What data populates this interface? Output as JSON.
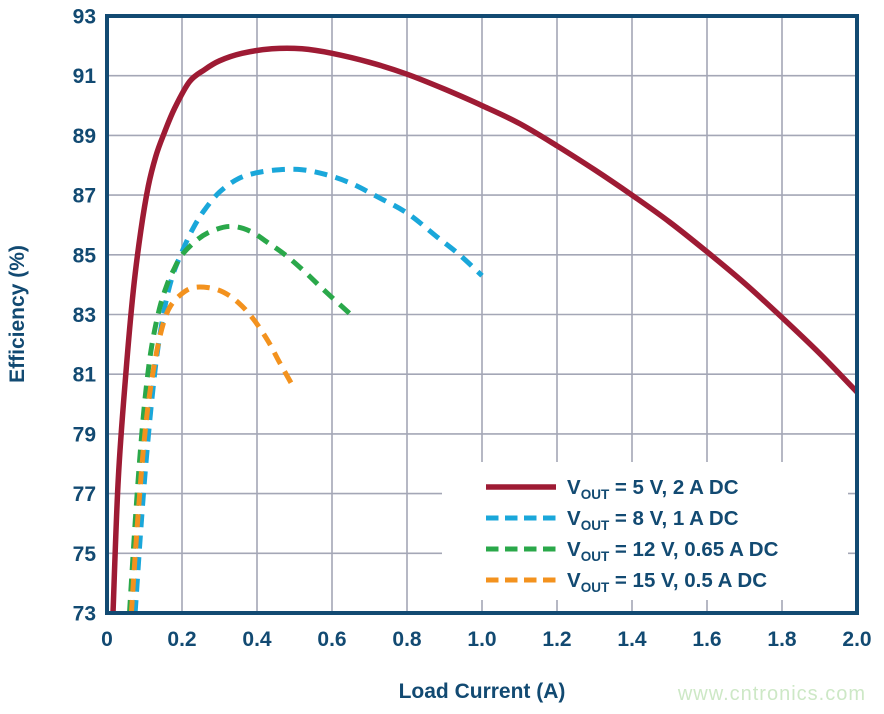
{
  "watermark": "www.cntronics.com",
  "colors": {
    "axis": "#124a72",
    "grid": "#a4a7b6",
    "background": "#ffffff",
    "watermark": "#cde8c6",
    "legend_box": "#ffffff"
  },
  "chart_data": {
    "type": "line",
    "title": "",
    "xlabel": "Load Current (A)",
    "ylabel": "Efficiency (%)",
    "xlim": [
      0,
      2.0
    ],
    "ylim": [
      73,
      93
    ],
    "xtick_values": [
      0,
      0.2,
      0.4,
      0.6,
      0.8,
      1.0,
      1.2,
      1.4,
      1.6,
      1.8,
      2.0
    ],
    "xtick_labels": [
      "0",
      "0.2",
      "0.4",
      "0.6",
      "0.8",
      "1.0",
      "1.2",
      "1.4",
      "1.6",
      "1.8",
      "2.0"
    ],
    "ytick_values": [
      73,
      75,
      77,
      79,
      81,
      83,
      85,
      87,
      89,
      91,
      93
    ],
    "ytick_labels": [
      "73",
      "75",
      "77",
      "79",
      "81",
      "83",
      "85",
      "87",
      "89",
      "91",
      "93"
    ],
    "grid": true,
    "legend_position": "lower right",
    "series": [
      {
        "label": {
          "prefix": "V",
          "sub": "OUT",
          "rest": " = 5 V, 2 A DC"
        },
        "color": "#9e1b34",
        "dash": "solid",
        "points": [
          [
            0.016,
            73
          ],
          [
            0.03,
            77.5
          ],
          [
            0.05,
            81
          ],
          [
            0.07,
            83.8
          ],
          [
            0.09,
            85.8
          ],
          [
            0.11,
            87.3
          ],
          [
            0.13,
            88.3
          ],
          [
            0.15,
            89.0
          ],
          [
            0.18,
            89.9
          ],
          [
            0.22,
            90.8
          ],
          [
            0.26,
            91.2
          ],
          [
            0.3,
            91.5
          ],
          [
            0.36,
            91.75
          ],
          [
            0.44,
            91.9
          ],
          [
            0.52,
            91.9
          ],
          [
            0.6,
            91.75
          ],
          [
            0.7,
            91.45
          ],
          [
            0.8,
            91.05
          ],
          [
            0.9,
            90.55
          ],
          [
            1.0,
            90.0
          ],
          [
            1.1,
            89.4
          ],
          [
            1.2,
            88.65
          ],
          [
            1.3,
            87.85
          ],
          [
            1.4,
            87.0
          ],
          [
            1.5,
            86.1
          ],
          [
            1.6,
            85.1
          ],
          [
            1.7,
            84.05
          ],
          [
            1.8,
            82.9
          ],
          [
            1.9,
            81.7
          ],
          [
            2.0,
            80.4
          ]
        ]
      },
      {
        "label": {
          "prefix": "V",
          "sub": "OUT",
          "rest": " = 8 V, 1 A DC"
        },
        "color": "#1aa7da",
        "dash": "dashed",
        "points": [
          [
            0.075,
            73
          ],
          [
            0.09,
            75.8
          ],
          [
            0.105,
            78.2
          ],
          [
            0.12,
            80.2
          ],
          [
            0.135,
            81.8
          ],
          [
            0.155,
            83.3
          ],
          [
            0.175,
            84.3
          ],
          [
            0.2,
            85.1
          ],
          [
            0.23,
            85.9
          ],
          [
            0.26,
            86.5
          ],
          [
            0.3,
            87.1
          ],
          [
            0.35,
            87.55
          ],
          [
            0.4,
            87.75
          ],
          [
            0.46,
            87.85
          ],
          [
            0.52,
            87.85
          ],
          [
            0.58,
            87.7
          ],
          [
            0.65,
            87.4
          ],
          [
            0.72,
            86.95
          ],
          [
            0.8,
            86.4
          ],
          [
            0.88,
            85.6
          ],
          [
            0.94,
            85.0
          ],
          [
            1.0,
            84.3
          ]
        ]
      },
      {
        "label": {
          "prefix": "V",
          "sub": "OUT",
          "rest": " = 12 V, 0.65 A DC"
        },
        "color": "#2aa84a",
        "dash": "dashed",
        "points": [
          [
            0.06,
            73
          ],
          [
            0.075,
            76
          ],
          [
            0.09,
            78.6
          ],
          [
            0.105,
            80.6
          ],
          [
            0.12,
            82.0
          ],
          [
            0.14,
            83.2
          ],
          [
            0.16,
            84.0
          ],
          [
            0.18,
            84.55
          ],
          [
            0.2,
            85.0
          ],
          [
            0.24,
            85.5
          ],
          [
            0.28,
            85.8
          ],
          [
            0.33,
            85.95
          ],
          [
            0.38,
            85.8
          ],
          [
            0.43,
            85.4
          ],
          [
            0.48,
            84.95
          ],
          [
            0.53,
            84.4
          ],
          [
            0.58,
            83.8
          ],
          [
            0.65,
            83.0
          ]
        ]
      },
      {
        "label": {
          "prefix": "V",
          "sub": "OUT",
          "rest": " = 15 V, 0.5 A DC"
        },
        "color": "#f3921e",
        "dash": "dashed",
        "points": [
          [
            0.065,
            73
          ],
          [
            0.08,
            75.8
          ],
          [
            0.095,
            78.2
          ],
          [
            0.11,
            80.0
          ],
          [
            0.13,
            81.6
          ],
          [
            0.15,
            82.7
          ],
          [
            0.17,
            83.3
          ],
          [
            0.2,
            83.7
          ],
          [
            0.23,
            83.9
          ],
          [
            0.27,
            83.9
          ],
          [
            0.31,
            83.75
          ],
          [
            0.35,
            83.4
          ],
          [
            0.39,
            82.85
          ],
          [
            0.43,
            82.1
          ],
          [
            0.46,
            81.4
          ],
          [
            0.5,
            80.5
          ]
        ]
      }
    ]
  }
}
